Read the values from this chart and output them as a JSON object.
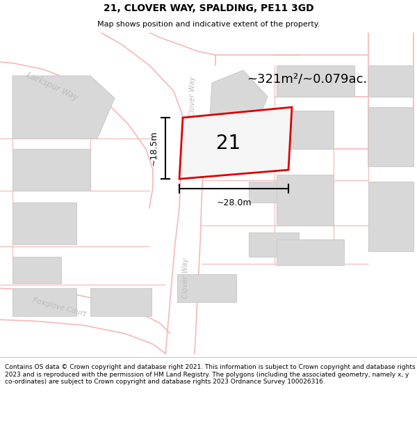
{
  "title": "21, CLOVER WAY, SPALDING, PE11 3GD",
  "subtitle": "Map shows position and indicative extent of the property.",
  "footer": "Contains OS data © Crown copyright and database right 2021. This information is subject to Crown copyright and database rights 2023 and is reproduced with the permission of HM Land Registry. The polygons (including the associated geometry, namely x, y co-ordinates) are subject to Crown copyright and database rights 2023 Ordnance Survey 100026316.",
  "area_label": "~321m²/~0.079ac.",
  "number_label": "21",
  "dim_width": "~28.0m",
  "dim_height": "~18.5m",
  "map_bg": "#ffffff",
  "building_fill": "#d8d8d8",
  "building_edge": "#cccccc",
  "road_line_color": "#f5b8b8",
  "plot_edge_color": "#dd0000",
  "plot_face_color": "#f5f5f5",
  "plot_linewidth": 2.0,
  "street_color": "#bbbbbb",
  "title_fontsize": 10,
  "subtitle_fontsize": 8,
  "footer_fontsize": 6.5,
  "number_fontsize": 20,
  "area_fontsize": 13,
  "dim_fontsize": 9
}
